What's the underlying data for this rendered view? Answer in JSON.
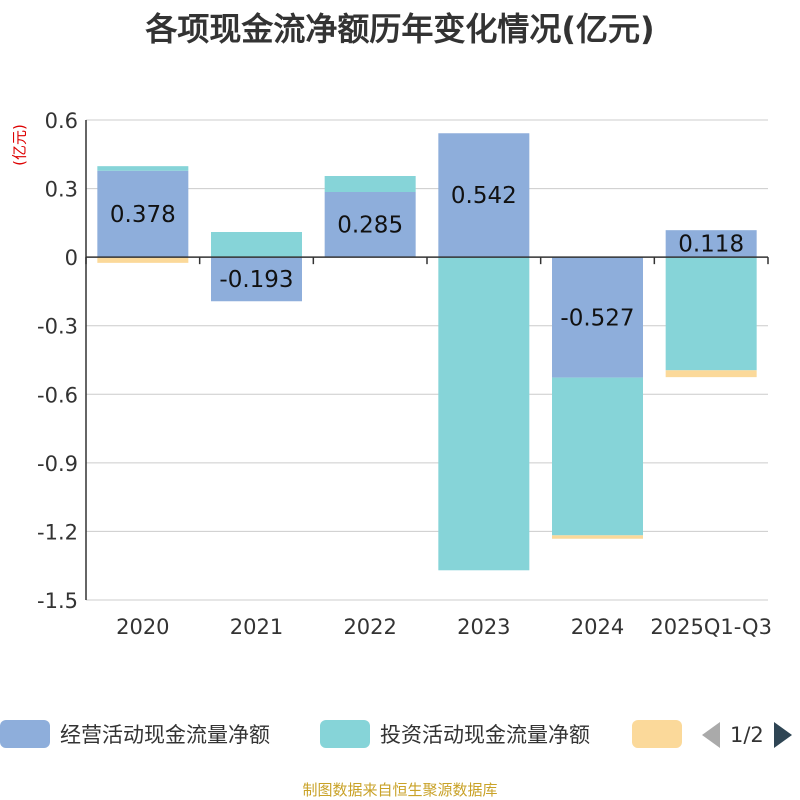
{
  "title": "各项现金流净额历年变化情况(亿元)",
  "unit_label": "(亿元)",
  "source": "制图数据来自恒生聚源数据库",
  "legend": {
    "items": [
      {
        "name": "经营活动现金流量净额",
        "color": "#8eaedb"
      },
      {
        "name": "投资活动现金流量净额",
        "color": "#86d4d8"
      },
      {
        "name": "",
        "color": "#fbd99a"
      }
    ],
    "page": "1/2"
  },
  "chart_data": {
    "type": "bar",
    "stacked": true,
    "title": "各项现金流净额历年变化情况(亿元)",
    "ylabel": "(亿元)",
    "categories": [
      "2020",
      "2021",
      "2022",
      "2023",
      "2024",
      "2025Q1-Q3"
    ],
    "ylim": [
      -1.5,
      0.6
    ],
    "yticks": [
      0.6,
      0.3,
      0,
      -0.3,
      -0.6,
      -0.9,
      -1.2,
      -1.5
    ],
    "ytick_labels": [
      "0.6",
      "0.3",
      "0",
      "-0.3",
      "-0.6",
      "-0.9",
      "-1.2",
      "-1.5"
    ],
    "grid": true,
    "series": [
      {
        "name": "经营活动现金流量净额",
        "color": "#8eaedb",
        "values": [
          0.378,
          -0.193,
          0.285,
          0.542,
          -0.527,
          0.118
        ],
        "labels": [
          "0.378",
          "-0.193",
          "0.285",
          "0.542",
          "-0.527",
          "0.118"
        ]
      },
      {
        "name": "投资活动现金流量净额",
        "color": "#86d4d8",
        "values": [
          0.02,
          0.11,
          0.07,
          -1.37,
          -0.69,
          -0.495
        ]
      },
      {
        "name": "",
        "color": "#fbd99a",
        "values": [
          -0.025,
          0,
          0,
          0,
          -0.015,
          -0.03
        ]
      }
    ]
  }
}
